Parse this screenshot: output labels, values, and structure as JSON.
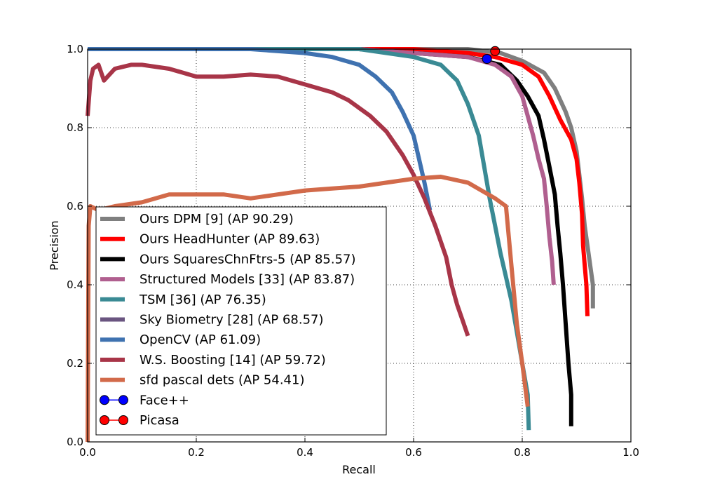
{
  "chart_data": {
    "type": "line",
    "title": "",
    "xlabel": "Recall",
    "ylabel": "Precision",
    "xlim": [
      0,
      1
    ],
    "ylim": [
      0,
      1
    ],
    "grid": true,
    "legend_position": "bottom-left",
    "x_ticks": [
      "0.0",
      "0.2",
      "0.4",
      "0.6",
      "0.8",
      "1.0"
    ],
    "y_ticks": [
      "0.0",
      "0.2",
      "0.4",
      "0.6",
      "0.8",
      "1.0"
    ],
    "series": [
      {
        "name": "Ours DPM [9] (AP 90.29)",
        "color": "#7f7f7f",
        "points": [
          [
            0.0,
            1.0
          ],
          [
            0.7,
            1.0
          ],
          [
            0.76,
            0.99
          ],
          [
            0.8,
            0.97
          ],
          [
            0.84,
            0.94
          ],
          [
            0.86,
            0.9
          ],
          [
            0.88,
            0.84
          ],
          [
            0.89,
            0.8
          ],
          [
            0.9,
            0.74
          ],
          [
            0.905,
            0.68
          ],
          [
            0.91,
            0.62
          ],
          [
            0.915,
            0.55
          ],
          [
            0.92,
            0.5
          ],
          [
            0.925,
            0.45
          ],
          [
            0.93,
            0.4
          ],
          [
            0.93,
            0.34
          ]
        ]
      },
      {
        "name": "Ours HeadHunter (AP 89.63)",
        "color": "#ff0000",
        "points": [
          [
            0.0,
            1.0
          ],
          [
            0.6,
            1.0
          ],
          [
            0.7,
            0.99
          ],
          [
            0.75,
            0.98
          ],
          [
            0.8,
            0.96
          ],
          [
            0.83,
            0.93
          ],
          [
            0.85,
            0.88
          ],
          [
            0.87,
            0.82
          ],
          [
            0.89,
            0.77
          ],
          [
            0.9,
            0.72
          ],
          [
            0.905,
            0.66
          ],
          [
            0.91,
            0.58
          ],
          [
            0.912,
            0.5
          ],
          [
            0.915,
            0.45
          ],
          [
            0.918,
            0.4
          ],
          [
            0.92,
            0.32
          ]
        ]
      },
      {
        "name": "Ours SquaresChnFtrs-5 (AP 85.57)",
        "color": "#000000",
        "points": [
          [
            0.0,
            1.0
          ],
          [
            0.5,
            1.0
          ],
          [
            0.6,
            0.99
          ],
          [
            0.7,
            0.98
          ],
          [
            0.76,
            0.96
          ],
          [
            0.79,
            0.92
          ],
          [
            0.81,
            0.88
          ],
          [
            0.83,
            0.83
          ],
          [
            0.84,
            0.77
          ],
          [
            0.85,
            0.7
          ],
          [
            0.86,
            0.63
          ],
          [
            0.865,
            0.55
          ],
          [
            0.87,
            0.48
          ],
          [
            0.875,
            0.4
          ],
          [
            0.88,
            0.3
          ],
          [
            0.885,
            0.2
          ],
          [
            0.89,
            0.12
          ],
          [
            0.89,
            0.04
          ]
        ]
      },
      {
        "name": "Structured Models [33] (AP 83.87)",
        "color": "#b05f8f",
        "points": [
          [
            0.0,
            1.0
          ],
          [
            0.5,
            1.0
          ],
          [
            0.6,
            0.99
          ],
          [
            0.7,
            0.98
          ],
          [
            0.75,
            0.96
          ],
          [
            0.78,
            0.93
          ],
          [
            0.8,
            0.88
          ],
          [
            0.81,
            0.83
          ],
          [
            0.82,
            0.78
          ],
          [
            0.83,
            0.72
          ],
          [
            0.84,
            0.67
          ],
          [
            0.845,
            0.6
          ],
          [
            0.85,
            0.52
          ],
          [
            0.855,
            0.46
          ],
          [
            0.858,
            0.4
          ]
        ]
      },
      {
        "name": "TSM [36] (AP 76.35)",
        "color": "#3a8a94",
        "points": [
          [
            0.0,
            1.0
          ],
          [
            0.5,
            1.0
          ],
          [
            0.6,
            0.98
          ],
          [
            0.65,
            0.96
          ],
          [
            0.68,
            0.92
          ],
          [
            0.7,
            0.86
          ],
          [
            0.72,
            0.78
          ],
          [
            0.73,
            0.7
          ],
          [
            0.74,
            0.62
          ],
          [
            0.75,
            0.55
          ],
          [
            0.76,
            0.48
          ],
          [
            0.77,
            0.42
          ],
          [
            0.78,
            0.36
          ],
          [
            0.79,
            0.28
          ],
          [
            0.8,
            0.2
          ],
          [
            0.81,
            0.12
          ],
          [
            0.812,
            0.03
          ]
        ]
      },
      {
        "name": "Sky Biometry [28] (AP 68.57)",
        "color": "#6a5580",
        "points": []
      },
      {
        "name": "OpenCV (AP 61.09)",
        "color": "#3f72b0",
        "points": [
          [
            0.0,
            1.0
          ],
          [
            0.3,
            1.0
          ],
          [
            0.4,
            0.99
          ],
          [
            0.45,
            0.98
          ],
          [
            0.5,
            0.96
          ],
          [
            0.53,
            0.93
          ],
          [
            0.56,
            0.89
          ],
          [
            0.58,
            0.84
          ],
          [
            0.6,
            0.78
          ],
          [
            0.61,
            0.72
          ],
          [
            0.62,
            0.66
          ],
          [
            0.63,
            0.59
          ]
        ]
      },
      {
        "name": "W.S. Boosting [14] (AP 59.72)",
        "color": "#a83548",
        "points": [
          [
            0.0,
            0.83
          ],
          [
            0.005,
            0.92
          ],
          [
            0.01,
            0.95
          ],
          [
            0.02,
            0.96
          ],
          [
            0.03,
            0.92
          ],
          [
            0.05,
            0.95
          ],
          [
            0.08,
            0.96
          ],
          [
            0.1,
            0.96
          ],
          [
            0.15,
            0.95
          ],
          [
            0.2,
            0.93
          ],
          [
            0.25,
            0.93
          ],
          [
            0.3,
            0.935
          ],
          [
            0.35,
            0.93
          ],
          [
            0.4,
            0.91
          ],
          [
            0.45,
            0.89
          ],
          [
            0.48,
            0.87
          ],
          [
            0.52,
            0.83
          ],
          [
            0.55,
            0.79
          ],
          [
            0.58,
            0.73
          ],
          [
            0.6,
            0.68
          ],
          [
            0.62,
            0.62
          ],
          [
            0.64,
            0.55
          ],
          [
            0.66,
            0.47
          ],
          [
            0.67,
            0.4
          ],
          [
            0.68,
            0.35
          ],
          [
            0.69,
            0.31
          ],
          [
            0.7,
            0.27
          ]
        ]
      },
      {
        "name": "sfd pascal dets (AP 54.41)",
        "color": "#d26a4a",
        "points": [
          [
            0.0,
            0.0
          ],
          [
            0.002,
            0.55
          ],
          [
            0.005,
            0.6
          ],
          [
            0.02,
            0.59
          ],
          [
            0.05,
            0.6
          ],
          [
            0.1,
            0.61
          ],
          [
            0.15,
            0.63
          ],
          [
            0.2,
            0.63
          ],
          [
            0.25,
            0.63
          ],
          [
            0.3,
            0.62
          ],
          [
            0.35,
            0.63
          ],
          [
            0.4,
            0.64
          ],
          [
            0.45,
            0.645
          ],
          [
            0.5,
            0.65
          ],
          [
            0.55,
            0.66
          ],
          [
            0.6,
            0.67
          ],
          [
            0.65,
            0.675
          ],
          [
            0.7,
            0.66
          ],
          [
            0.75,
            0.62
          ],
          [
            0.77,
            0.6
          ],
          [
            0.78,
            0.45
          ],
          [
            0.79,
            0.3
          ],
          [
            0.8,
            0.2
          ],
          [
            0.81,
            0.09
          ]
        ]
      }
    ],
    "markers": [
      {
        "name": "Face++",
        "color": "#0000ff",
        "x": 0.735,
        "y": 0.975
      },
      {
        "name": "Picasa",
        "color": "#ff0000",
        "x": 0.75,
        "y": 0.995
      }
    ]
  }
}
